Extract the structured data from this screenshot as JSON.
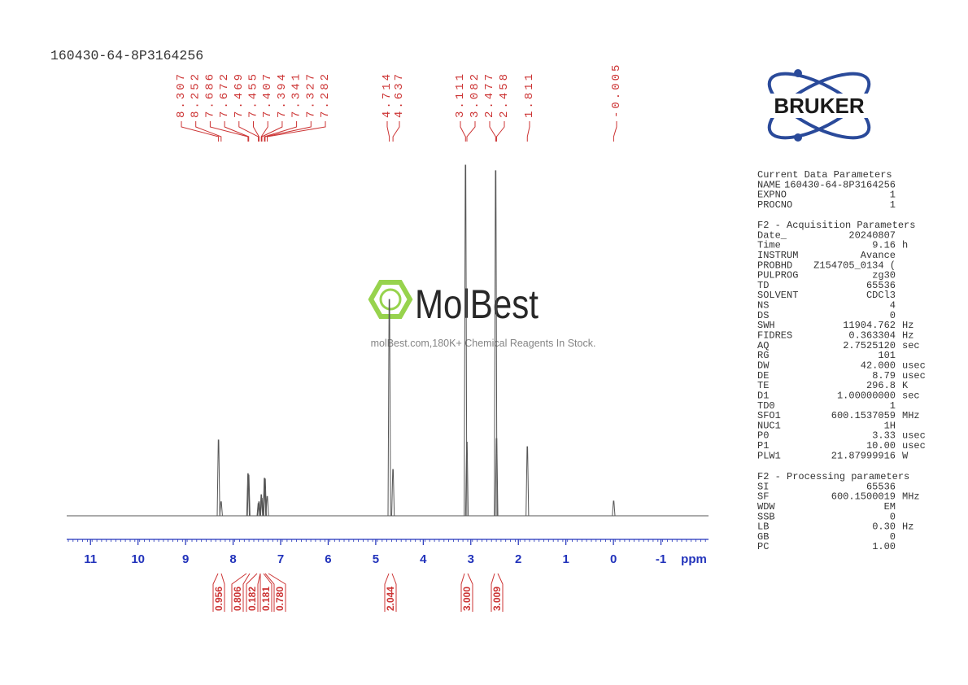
{
  "header": {
    "sample_id": "160430-64-8P3164256"
  },
  "logo": "BRUKER",
  "watermark": {
    "brand": "MolBest",
    "tagline": "molBest.com,180K+ Chemical Reagents In Stock."
  },
  "parameters": {
    "sections": [
      {
        "title": "Current Data Parameters",
        "rows": [
          [
            "NAME",
            "160430-64-8P3164256"
          ],
          [
            "EXPNO",
            "1"
          ],
          [
            "PROCNO",
            "1"
          ]
        ]
      },
      {
        "title": "F2 - Acquisition Parameters",
        "rows": [
          [
            "Date_",
            "20240807"
          ],
          [
            "Time",
            "9.16",
            "h"
          ],
          [
            "INSTRUM",
            "Avance"
          ],
          [
            "PROBHD",
            "Z154705_0134 ("
          ],
          [
            "PULPROG",
            "zg30"
          ],
          [
            "TD",
            "65536"
          ],
          [
            "SOLVENT",
            "CDCl3"
          ],
          [
            "NS",
            "4"
          ],
          [
            "DS",
            "0"
          ],
          [
            "SWH",
            "11904.762",
            "Hz"
          ],
          [
            "FIDRES",
            "0.363304",
            "Hz"
          ],
          [
            "AQ",
            "2.7525120",
            "sec"
          ],
          [
            "RG",
            "101"
          ],
          [
            "DW",
            "42.000",
            "usec"
          ],
          [
            "DE",
            "8.79",
            "usec"
          ],
          [
            "TE",
            "296.8",
            "K"
          ],
          [
            "D1",
            "1.00000000",
            "sec"
          ],
          [
            "TD0",
            "1"
          ],
          [
            "SFO1",
            "600.1537059",
            "MHz"
          ],
          [
            "NUC1",
            "1H"
          ],
          [
            "P0",
            "3.33",
            "usec"
          ],
          [
            "P1",
            "10.00",
            "usec"
          ],
          [
            "PLW1",
            "21.87999916",
            "W"
          ]
        ]
      },
      {
        "title": "F2 - Processing parameters",
        "rows": [
          [
            "SI",
            "65536"
          ],
          [
            "SF",
            "600.1500019",
            "MHz"
          ],
          [
            "WDW",
            "EM"
          ],
          [
            "SSB",
            "0"
          ],
          [
            "LB",
            "0.30",
            "Hz"
          ],
          [
            "GB",
            "0"
          ],
          [
            "PC",
            "1.00"
          ]
        ]
      }
    ]
  },
  "chart_data": {
    "type": "nmr",
    "color": "#555555",
    "label_color": "#cc3333",
    "axis_color": "#2233bb",
    "x": [
      8.307,
      8.252,
      7.686,
      7.672,
      7.469,
      7.455,
      7.407,
      7.394,
      7.341,
      7.327,
      7.282,
      4.714,
      4.637,
      3.111,
      3.082,
      2.477,
      2.458,
      1.811,
      -0.005
    ],
    "values": [
      21.6,
      4,
      12,
      11.6,
      3.5,
      4,
      6,
      5,
      10.7,
      10.5,
      5.5,
      61.7,
      13.2,
      100,
      21,
      98.4,
      22,
      19.7,
      4.2
    ],
    "ylim": [
      0,
      100
    ],
    "xlim": [
      11.5,
      -2.0
    ],
    "xticks": [
      11,
      10,
      9,
      8,
      7,
      6,
      5,
      4,
      3,
      2,
      1,
      0,
      -1
    ],
    "xlabel": "ppm",
    "integrals": {
      "values": [
        0.956,
        0.806,
        0.182,
        0.181,
        0.78,
        2.044,
        3,
        3.009
      ],
      "value_labels": [
        "0.956",
        "0.806",
        "0.182",
        "0.181",
        "0.780",
        "2.044",
        "3.000",
        "3.009"
      ]
    }
  }
}
